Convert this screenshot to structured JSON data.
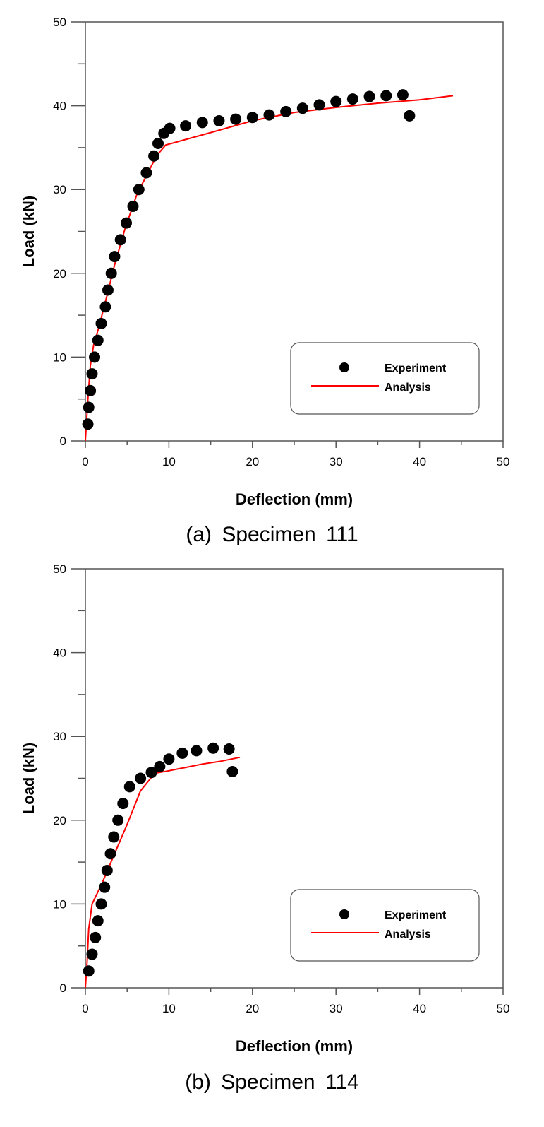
{
  "chart_data": [
    {
      "type": "scatter",
      "title": "(a)  Specimen  111",
      "xlabel": "Deflection (mm)",
      "ylabel": "Load (kN)",
      "xlim": [
        0,
        50
      ],
      "ylim": [
        0,
        50
      ],
      "xticks": [
        "0",
        "10",
        "20",
        "30",
        "40",
        "50"
      ],
      "yticks": [
        "0",
        "10",
        "20",
        "30",
        "40",
        "50"
      ],
      "grid": false,
      "legend_position": "bottom-right",
      "series": [
        {
          "name": "Experiment",
          "kind": "scatter",
          "color": "#000000",
          "x": [
            0.3,
            0.4,
            0.6,
            0.8,
            1.1,
            1.5,
            1.9,
            2.4,
            2.7,
            3.1,
            3.5,
            4.2,
            4.9,
            5.7,
            6.4,
            7.3,
            8.2,
            8.7,
            9.4,
            10.1,
            12,
            14,
            16,
            18,
            20,
            22,
            24,
            26,
            28,
            30,
            32,
            34,
            36,
            38,
            38.8
          ],
          "y": [
            2,
            4,
            6,
            8,
            10,
            12,
            14,
            16,
            18,
            20,
            22,
            24,
            26,
            28,
            30,
            32,
            34,
            35.5,
            36.7,
            37.3,
            37.6,
            38,
            38.2,
            38.4,
            38.6,
            38.9,
            39.3,
            39.7,
            40.1,
            40.5,
            40.8,
            41.1,
            41.2,
            41.3,
            38.8
          ]
        },
        {
          "name": "Analysis",
          "kind": "line",
          "color": "#ff0000",
          "x": [
            0,
            0.3,
            0.6,
            1.0,
            1.6,
            2.5,
            3.5,
            4.8,
            6.2,
            7.5,
            8.5,
            9.6,
            15,
            20,
            25,
            30,
            35,
            40,
            44
          ],
          "y": [
            0,
            5,
            9,
            11.5,
            13.5,
            17,
            21,
            25.5,
            29.5,
            32,
            34,
            35.3,
            36.8,
            38.2,
            39.2,
            39.8,
            40.3,
            40.7,
            41.2
          ]
        }
      ]
    },
    {
      "type": "scatter",
      "title": "(b)  Specimen  114",
      "xlabel": "Deflection (mm)",
      "ylabel": "Load (kN)",
      "xlim": [
        0,
        50
      ],
      "ylim": [
        0,
        50
      ],
      "xticks": [
        "0",
        "10",
        "20",
        "30",
        "40",
        "50"
      ],
      "yticks": [
        "0",
        "10",
        "20",
        "30",
        "40",
        "50"
      ],
      "grid": false,
      "legend_position": "bottom-right",
      "series": [
        {
          "name": "Experiment",
          "kind": "scatter",
          "color": "#000000",
          "x": [
            0.4,
            0.8,
            1.2,
            1.5,
            1.9,
            2.3,
            2.6,
            3.0,
            3.4,
            3.9,
            4.5,
            5.3,
            6.6,
            7.9,
            8.9,
            10.0,
            11.6,
            13.3,
            15.3,
            17.2,
            17.6
          ],
          "y": [
            2,
            4,
            6,
            8,
            10,
            12,
            14,
            16,
            18,
            20,
            22,
            24,
            25,
            25.7,
            26.4,
            27.3,
            28.0,
            28.3,
            28.6,
            28.5,
            25.8
          ]
        },
        {
          "name": "Analysis",
          "kind": "line",
          "color": "#ff0000",
          "x": [
            0,
            0.2,
            0.4,
            0.8,
            2.0,
            3.5,
            5.0,
            6.6,
            8.3,
            10,
            12,
            14,
            16,
            18.5
          ],
          "y": [
            0,
            3,
            7,
            10,
            12.5,
            16,
            19.5,
            23.5,
            25.6,
            25.9,
            26.3,
            26.7,
            27.0,
            27.5
          ]
        }
      ]
    }
  ]
}
